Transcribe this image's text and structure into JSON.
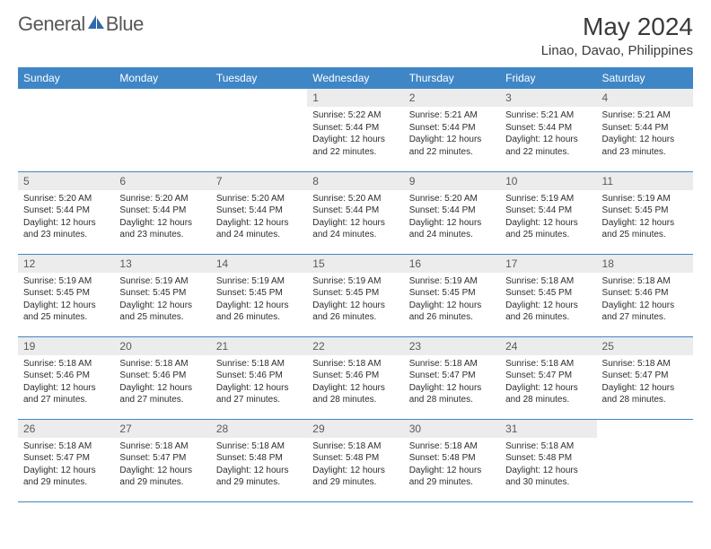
{
  "logo": {
    "text1": "General",
    "text2": "Blue"
  },
  "title": "May 2024",
  "location": "Linao, Davao, Philippines",
  "colors": {
    "header_bg": "#3f86c7",
    "header_text": "#ffffff",
    "daynum_bg": "#ececec",
    "daynum_text": "#5a5a5a",
    "body_text": "#2d2d2d",
    "rule": "#3f86c7"
  },
  "weekdays": [
    "Sunday",
    "Monday",
    "Tuesday",
    "Wednesday",
    "Thursday",
    "Friday",
    "Saturday"
  ],
  "weeks": [
    [
      null,
      null,
      null,
      {
        "day": "1",
        "sunrise": "Sunrise: 5:22 AM",
        "sunset": "Sunset: 5:44 PM",
        "daylight": "Daylight: 12 hours and 22 minutes."
      },
      {
        "day": "2",
        "sunrise": "Sunrise: 5:21 AM",
        "sunset": "Sunset: 5:44 PM",
        "daylight": "Daylight: 12 hours and 22 minutes."
      },
      {
        "day": "3",
        "sunrise": "Sunrise: 5:21 AM",
        "sunset": "Sunset: 5:44 PM",
        "daylight": "Daylight: 12 hours and 22 minutes."
      },
      {
        "day": "4",
        "sunrise": "Sunrise: 5:21 AM",
        "sunset": "Sunset: 5:44 PM",
        "daylight": "Daylight: 12 hours and 23 minutes."
      }
    ],
    [
      {
        "day": "5",
        "sunrise": "Sunrise: 5:20 AM",
        "sunset": "Sunset: 5:44 PM",
        "daylight": "Daylight: 12 hours and 23 minutes."
      },
      {
        "day": "6",
        "sunrise": "Sunrise: 5:20 AM",
        "sunset": "Sunset: 5:44 PM",
        "daylight": "Daylight: 12 hours and 23 minutes."
      },
      {
        "day": "7",
        "sunrise": "Sunrise: 5:20 AM",
        "sunset": "Sunset: 5:44 PM",
        "daylight": "Daylight: 12 hours and 24 minutes."
      },
      {
        "day": "8",
        "sunrise": "Sunrise: 5:20 AM",
        "sunset": "Sunset: 5:44 PM",
        "daylight": "Daylight: 12 hours and 24 minutes."
      },
      {
        "day": "9",
        "sunrise": "Sunrise: 5:20 AM",
        "sunset": "Sunset: 5:44 PM",
        "daylight": "Daylight: 12 hours and 24 minutes."
      },
      {
        "day": "10",
        "sunrise": "Sunrise: 5:19 AM",
        "sunset": "Sunset: 5:44 PM",
        "daylight": "Daylight: 12 hours and 25 minutes."
      },
      {
        "day": "11",
        "sunrise": "Sunrise: 5:19 AM",
        "sunset": "Sunset: 5:45 PM",
        "daylight": "Daylight: 12 hours and 25 minutes."
      }
    ],
    [
      {
        "day": "12",
        "sunrise": "Sunrise: 5:19 AM",
        "sunset": "Sunset: 5:45 PM",
        "daylight": "Daylight: 12 hours and 25 minutes."
      },
      {
        "day": "13",
        "sunrise": "Sunrise: 5:19 AM",
        "sunset": "Sunset: 5:45 PM",
        "daylight": "Daylight: 12 hours and 25 minutes."
      },
      {
        "day": "14",
        "sunrise": "Sunrise: 5:19 AM",
        "sunset": "Sunset: 5:45 PM",
        "daylight": "Daylight: 12 hours and 26 minutes."
      },
      {
        "day": "15",
        "sunrise": "Sunrise: 5:19 AM",
        "sunset": "Sunset: 5:45 PM",
        "daylight": "Daylight: 12 hours and 26 minutes."
      },
      {
        "day": "16",
        "sunrise": "Sunrise: 5:19 AM",
        "sunset": "Sunset: 5:45 PM",
        "daylight": "Daylight: 12 hours and 26 minutes."
      },
      {
        "day": "17",
        "sunrise": "Sunrise: 5:18 AM",
        "sunset": "Sunset: 5:45 PM",
        "daylight": "Daylight: 12 hours and 26 minutes."
      },
      {
        "day": "18",
        "sunrise": "Sunrise: 5:18 AM",
        "sunset": "Sunset: 5:46 PM",
        "daylight": "Daylight: 12 hours and 27 minutes."
      }
    ],
    [
      {
        "day": "19",
        "sunrise": "Sunrise: 5:18 AM",
        "sunset": "Sunset: 5:46 PM",
        "daylight": "Daylight: 12 hours and 27 minutes."
      },
      {
        "day": "20",
        "sunrise": "Sunrise: 5:18 AM",
        "sunset": "Sunset: 5:46 PM",
        "daylight": "Daylight: 12 hours and 27 minutes."
      },
      {
        "day": "21",
        "sunrise": "Sunrise: 5:18 AM",
        "sunset": "Sunset: 5:46 PM",
        "daylight": "Daylight: 12 hours and 27 minutes."
      },
      {
        "day": "22",
        "sunrise": "Sunrise: 5:18 AM",
        "sunset": "Sunset: 5:46 PM",
        "daylight": "Daylight: 12 hours and 28 minutes."
      },
      {
        "day": "23",
        "sunrise": "Sunrise: 5:18 AM",
        "sunset": "Sunset: 5:47 PM",
        "daylight": "Daylight: 12 hours and 28 minutes."
      },
      {
        "day": "24",
        "sunrise": "Sunrise: 5:18 AM",
        "sunset": "Sunset: 5:47 PM",
        "daylight": "Daylight: 12 hours and 28 minutes."
      },
      {
        "day": "25",
        "sunrise": "Sunrise: 5:18 AM",
        "sunset": "Sunset: 5:47 PM",
        "daylight": "Daylight: 12 hours and 28 minutes."
      }
    ],
    [
      {
        "day": "26",
        "sunrise": "Sunrise: 5:18 AM",
        "sunset": "Sunset: 5:47 PM",
        "daylight": "Daylight: 12 hours and 29 minutes."
      },
      {
        "day": "27",
        "sunrise": "Sunrise: 5:18 AM",
        "sunset": "Sunset: 5:47 PM",
        "daylight": "Daylight: 12 hours and 29 minutes."
      },
      {
        "day": "28",
        "sunrise": "Sunrise: 5:18 AM",
        "sunset": "Sunset: 5:48 PM",
        "daylight": "Daylight: 12 hours and 29 minutes."
      },
      {
        "day": "29",
        "sunrise": "Sunrise: 5:18 AM",
        "sunset": "Sunset: 5:48 PM",
        "daylight": "Daylight: 12 hours and 29 minutes."
      },
      {
        "day": "30",
        "sunrise": "Sunrise: 5:18 AM",
        "sunset": "Sunset: 5:48 PM",
        "daylight": "Daylight: 12 hours and 29 minutes."
      },
      {
        "day": "31",
        "sunrise": "Sunrise: 5:18 AM",
        "sunset": "Sunset: 5:48 PM",
        "daylight": "Daylight: 12 hours and 30 minutes."
      },
      null
    ]
  ]
}
